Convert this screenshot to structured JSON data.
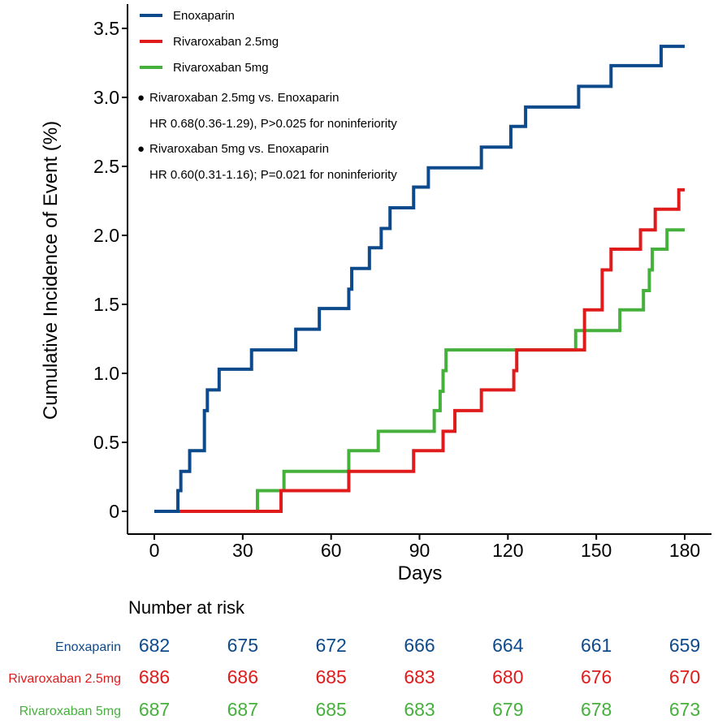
{
  "chart_data": {
    "type": "line",
    "subtype": "kaplan-meier step",
    "xlabel": "Days",
    "ylabel": "Cumulative Incidence of Event (%)",
    "xlim": [
      0,
      180
    ],
    "ylim": [
      0,
      3.5
    ],
    "x_ticks": [
      "0",
      "30",
      "60",
      "90",
      "120",
      "150",
      "180"
    ],
    "y_ticks": [
      "0",
      "0.5",
      "1.0",
      "1.5",
      "2.0",
      "2.5",
      "3.0",
      "3.5"
    ],
    "grid": false,
    "legend_position": "top-left",
    "series": [
      {
        "name": "Enoxaparin",
        "color": "#0d4a8c",
        "x": [
          0,
          8,
          9,
          12,
          17,
          18,
          22,
          33,
          48,
          56,
          66,
          67,
          73,
          77,
          80,
          88,
          93,
          111,
          121,
          126,
          144,
          155,
          172,
          180
        ],
        "y": [
          0,
          0.15,
          0.29,
          0.44,
          0.73,
          0.88,
          1.03,
          1.17,
          1.32,
          1.47,
          1.61,
          1.76,
          1.91,
          2.05,
          2.2,
          2.35,
          2.49,
          2.64,
          2.79,
          2.93,
          3.08,
          3.23,
          3.37,
          3.37
        ]
      },
      {
        "name": "Rivaroxaban 2.5mg",
        "color": "#e01b1b",
        "x": [
          0,
          43,
          66,
          88,
          98,
          102,
          111,
          122,
          123,
          146,
          152,
          155,
          165,
          170,
          178,
          180
        ],
        "y": [
          0,
          0.15,
          0.29,
          0.44,
          0.58,
          0.73,
          0.88,
          1.02,
          1.17,
          1.46,
          1.75,
          1.9,
          2.04,
          2.19,
          2.33,
          2.33
        ]
      },
      {
        "name": "Rivaroxaban 5mg",
        "color": "#46b03c",
        "x": [
          0,
          35,
          44,
          66,
          76,
          95,
          97,
          98,
          99,
          143,
          158,
          166,
          168,
          169,
          174,
          180
        ],
        "y": [
          0,
          0.15,
          0.29,
          0.44,
          0.58,
          0.73,
          0.87,
          1.02,
          1.17,
          1.31,
          1.46,
          1.6,
          1.75,
          1.9,
          2.04,
          2.04
        ]
      }
    ],
    "annotations": [
      {
        "bullet": "●",
        "line1": "Rivaroxaban 2.5mg vs. Enoxaparin",
        "line2": "HR 0.68(0.36-1.29), P>0.025 for noninferiority"
      },
      {
        "bullet": "●",
        "line1": "Rivaroxaban 5mg vs. Enoxaparin",
        "line2": "HR 0.60(0.31-1.16); P=0.021 for noninferiority"
      }
    ],
    "risk_table": {
      "title": "Number at risk",
      "days": [
        0,
        30,
        60,
        90,
        120,
        150,
        180
      ],
      "rows": [
        {
          "name": "Enoxaparin",
          "color": "#0d4a8c",
          "values": [
            "682",
            "675",
            "672",
            "666",
            "664",
            "661",
            "659"
          ]
        },
        {
          "name": "Rivaroxaban 2.5mg",
          "color": "#e01b1b",
          "values": [
            "686",
            "686",
            "685",
            "683",
            "680",
            "676",
            "670"
          ]
        },
        {
          "name": "Rivaroxaban 5mg",
          "color": "#46b03c",
          "values": [
            "687",
            "687",
            "685",
            "683",
            "679",
            "678",
            "673"
          ]
        }
      ]
    }
  }
}
